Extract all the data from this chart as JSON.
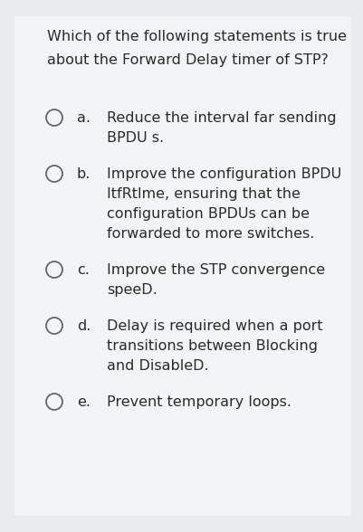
{
  "bg_color": "#e8ecef",
  "card_color": "#f0f2f4",
  "title_lines": [
    "Which of the following statements is true",
    "about the Forward Delay timer of STP?"
  ],
  "options": [
    {
      "label": "a.",
      "lines": [
        "Reduce the interval far sending",
        "BPDU s."
      ]
    },
    {
      "label": "b.",
      "lines": [
        "Improve the configuration BPDU",
        "ItfRtlme, ensuring that the",
        "configuration BPDUs can be",
        "forwarded to more switches."
      ]
    },
    {
      "label": "c.",
      "lines": [
        "Improve the STP convergence",
        "speeD."
      ]
    },
    {
      "label": "d.",
      "lines": [
        "Delay is required when a port",
        "transitions between Blocking",
        "and DisableD."
      ]
    },
    {
      "label": "e.",
      "lines": [
        "Prevent temporary loops."
      ]
    }
  ],
  "title_fontsize": 11.5,
  "option_fontsize": 11.5,
  "text_color": "#2a2a2a",
  "circle_color": "#666666",
  "font_family": "DejaVu Sans"
}
